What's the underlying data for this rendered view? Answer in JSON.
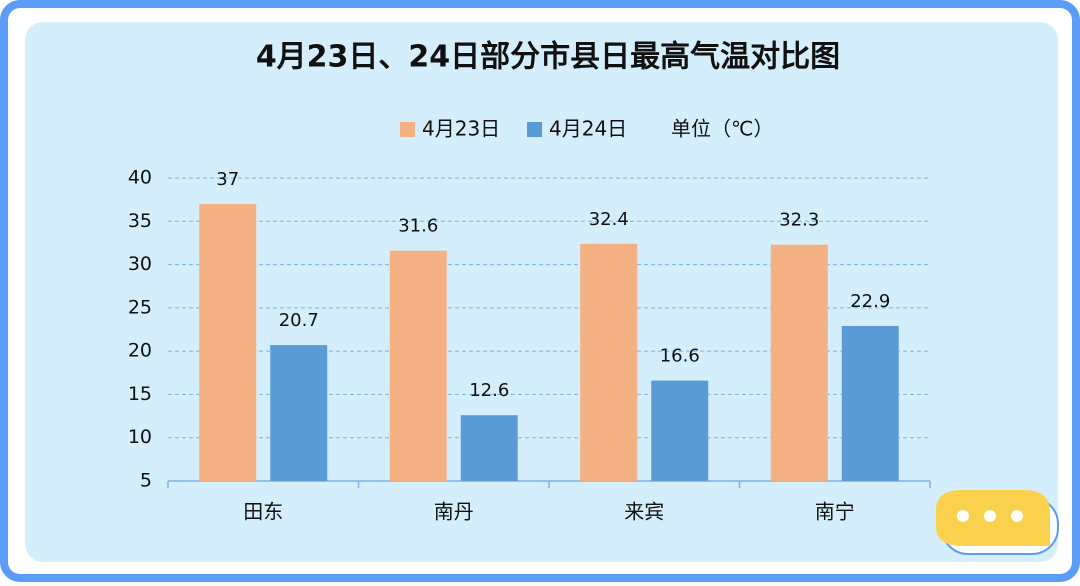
{
  "chart_data": {
    "type": "bar",
    "title": "4月23日、24日部分市县日最高气温对比图",
    "legend_note": "单位（℃）",
    "categories": [
      "田东",
      "南丹",
      "来宾",
      "南宁"
    ],
    "series": [
      {
        "name": "4月23日",
        "color": "#f4b183",
        "values": [
          37,
          31.6,
          32.4,
          32.3
        ]
      },
      {
        "name": "4月24日",
        "color": "#5b9bd5",
        "values": [
          20.7,
          12.6,
          16.6,
          22.9
        ]
      }
    ],
    "ylim": [
      5,
      40
    ],
    "yticks": [
      5,
      10,
      15,
      20,
      25,
      30,
      35,
      40
    ],
    "grid": true
  }
}
